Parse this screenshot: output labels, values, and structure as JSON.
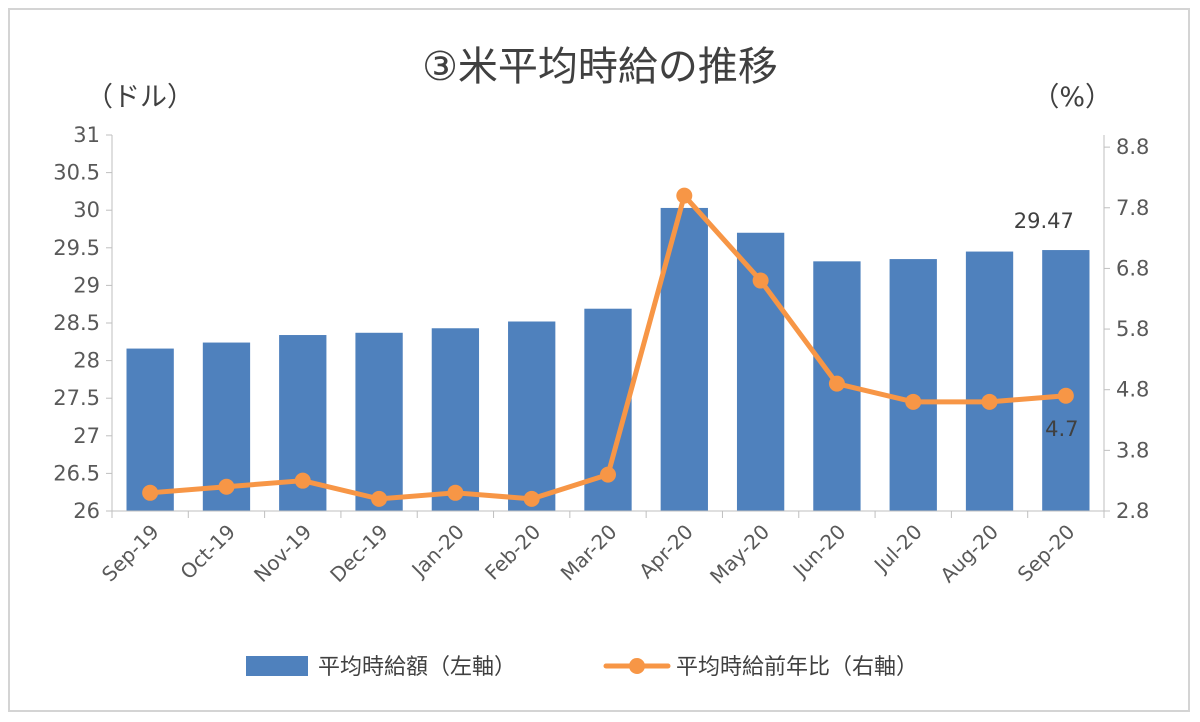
{
  "chart_data": {
    "type": "bar+line",
    "title": "③米平均時給の推移",
    "left_axis_unit": "（ドル）",
    "right_axis_unit": "（%）",
    "categories": [
      "Sep-19",
      "Oct-19",
      "Nov-19",
      "Dec-19",
      "Jan-20",
      "Feb-20",
      "Mar-20",
      "Apr-20",
      "May-20",
      "Jun-20",
      "Jul-20",
      "Aug-20",
      "Sep-20"
    ],
    "y_left": {
      "min": 26,
      "max": 31,
      "ticks": [
        "26",
        "26.5",
        "27",
        "27.5",
        "28",
        "28.5",
        "29",
        "29.5",
        "30",
        "30.5",
        "31"
      ]
    },
    "y_right": {
      "min": 2.8,
      "max": 9.0,
      "ticks": [
        "2.8",
        "3.8",
        "4.8",
        "5.8",
        "6.8",
        "7.8",
        "8.8"
      ]
    },
    "series": [
      {
        "name": "平均時給額（左軸）",
        "type": "bar",
        "axis": "left",
        "color": "#4f81bd",
        "values": [
          28.16,
          28.24,
          28.34,
          28.37,
          28.43,
          28.52,
          28.69,
          30.03,
          29.7,
          29.32,
          29.35,
          29.45,
          29.47
        ]
      },
      {
        "name": "平均時給前年比（右軸）",
        "type": "line",
        "axis": "right",
        "color": "#f79646",
        "values": [
          3.1,
          3.2,
          3.3,
          3.0,
          3.1,
          3.0,
          3.4,
          8.0,
          6.6,
          4.9,
          4.6,
          4.6,
          4.7
        ]
      }
    ],
    "data_labels": {
      "bar_last": "29.47",
      "line_last": "4.7"
    },
    "legend_position": "bottom",
    "grid": false
  }
}
